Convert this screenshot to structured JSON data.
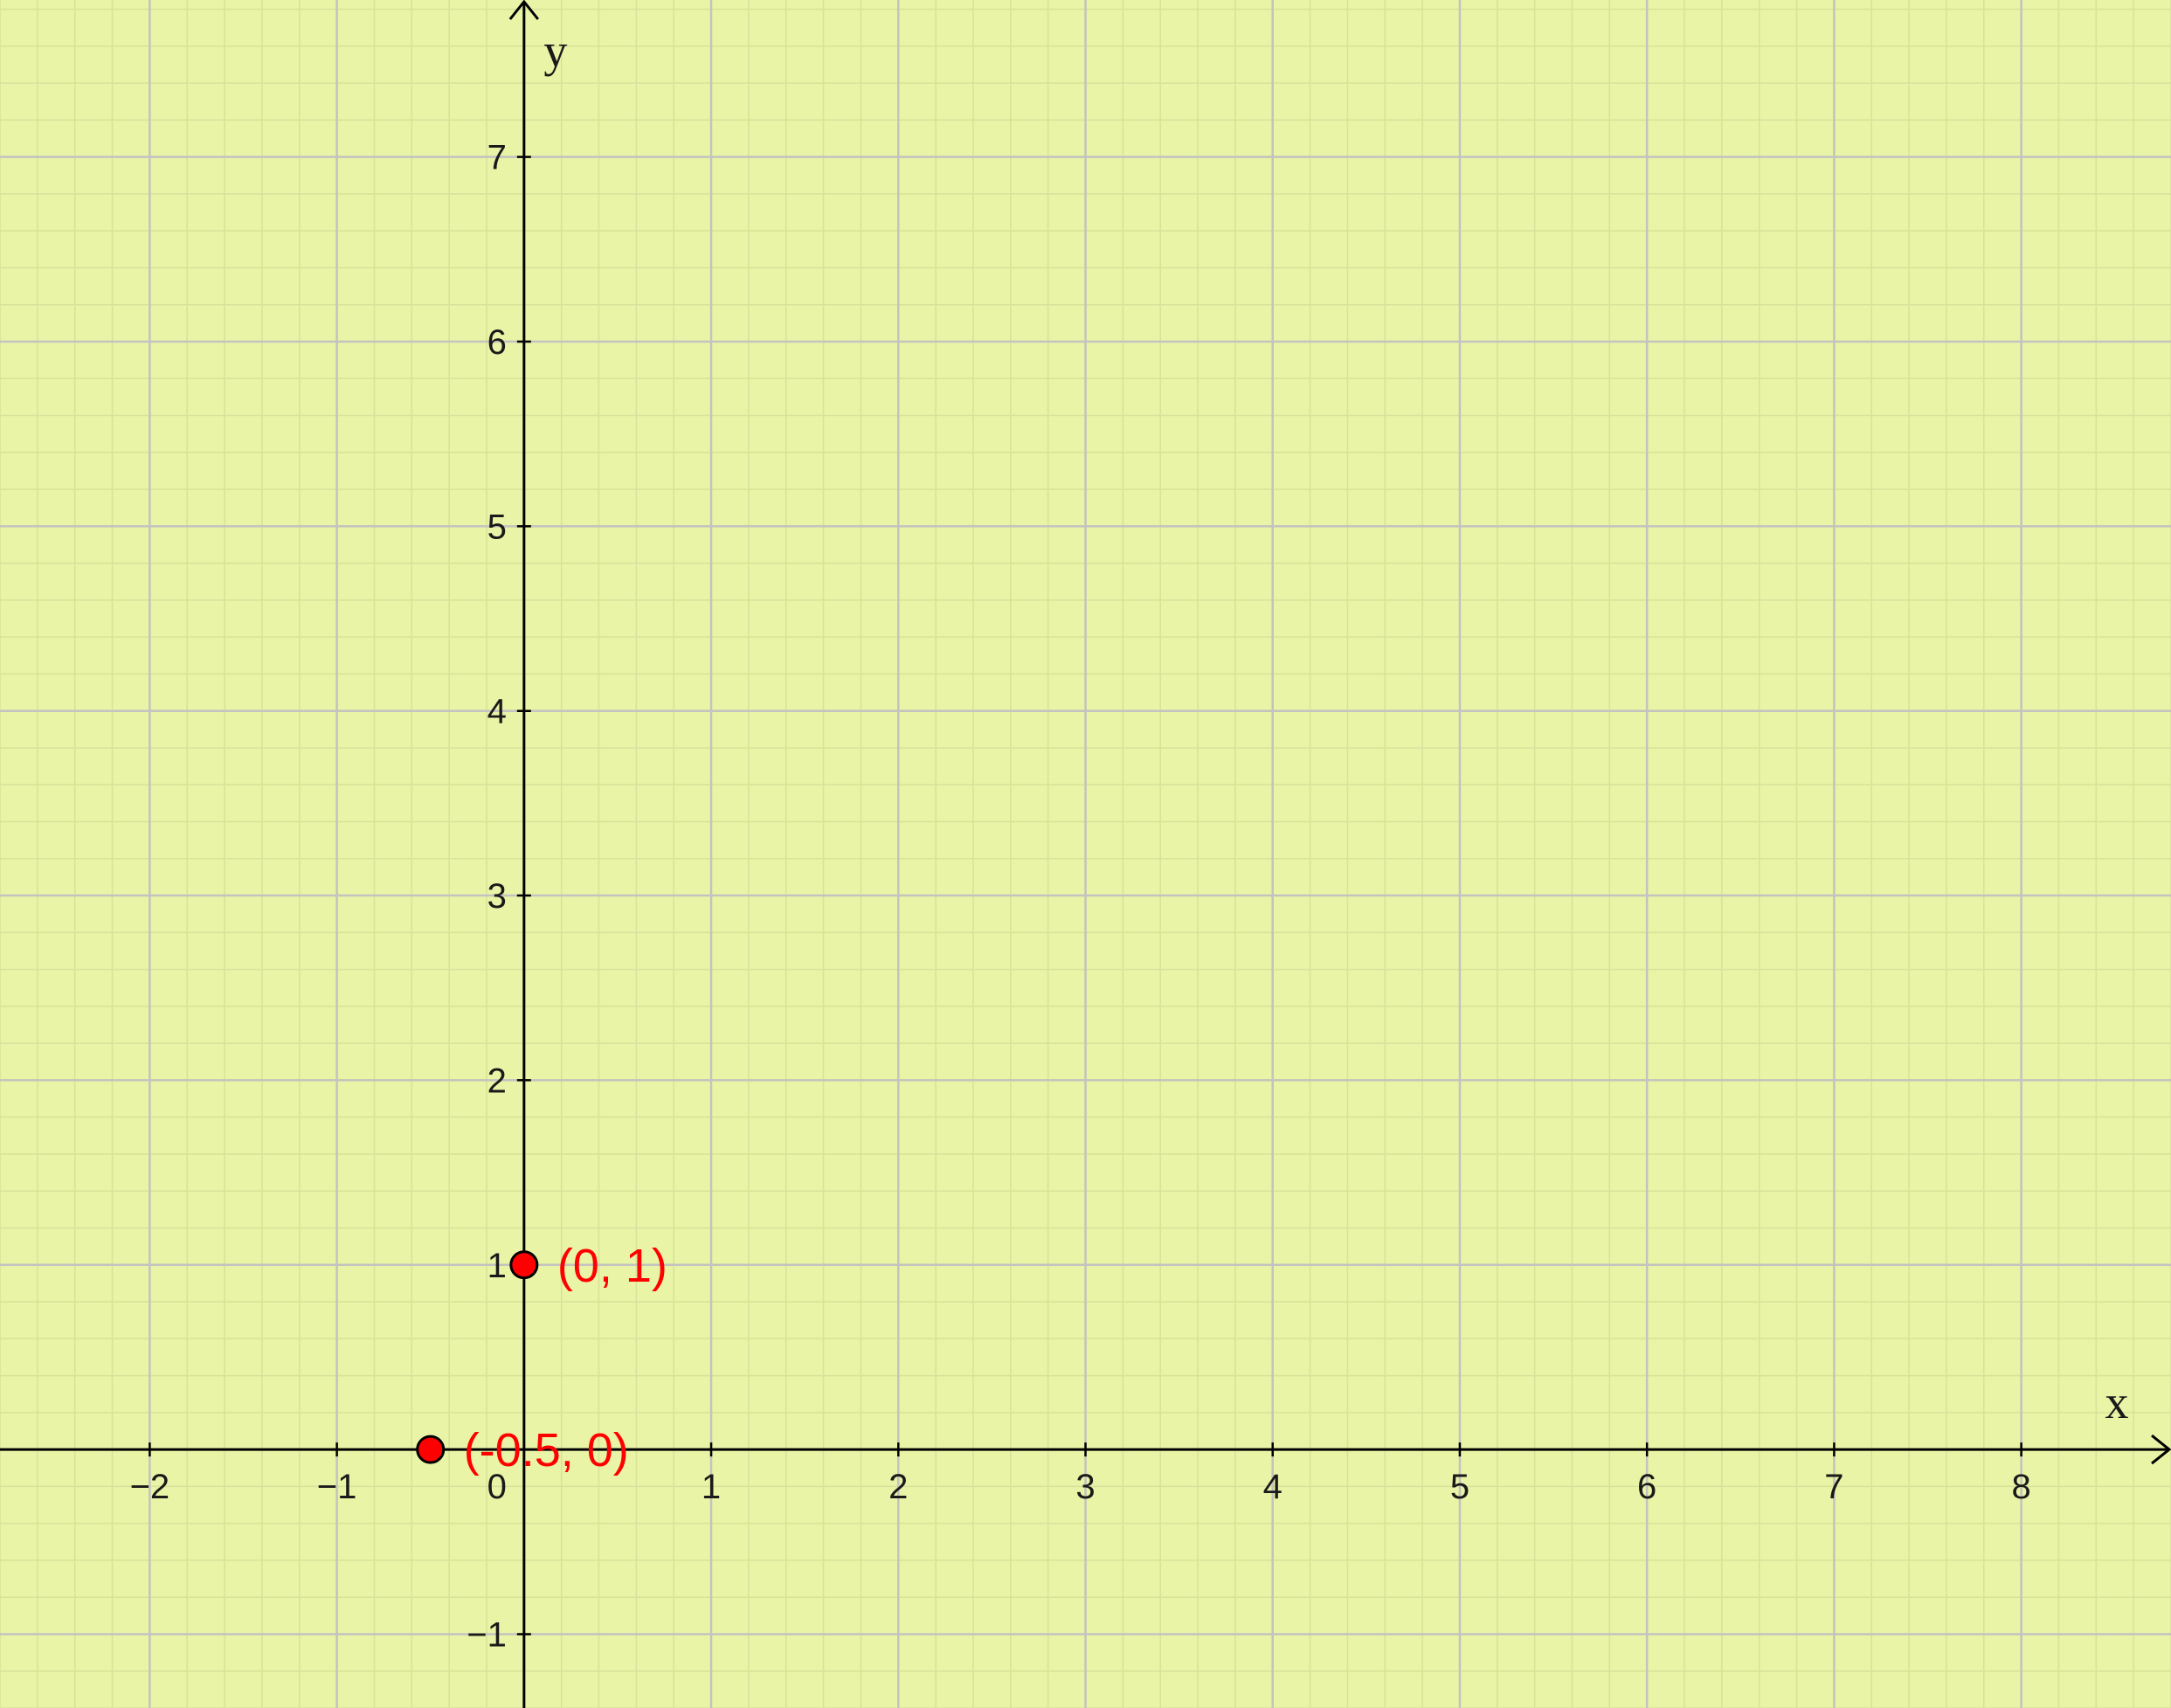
{
  "chart_data": {
    "type": "scatter",
    "title": "",
    "xlabel": "x",
    "ylabel": "y",
    "xlim": [
      -2.8,
      8.8
    ],
    "ylim": [
      -1.4,
      7.85
    ],
    "grid": true,
    "minor_grid": true,
    "background_color": "#e9f4a6",
    "grid_color": "#c3c3bf",
    "minor_grid_color": "#d7e29a",
    "axis_color": "#000000",
    "x_ticks": [
      {
        "value": -2,
        "label": "−2"
      },
      {
        "value": -1,
        "label": "−1"
      },
      {
        "value": 1,
        "label": "1"
      },
      {
        "value": 2,
        "label": "2"
      },
      {
        "value": 3,
        "label": "3"
      },
      {
        "value": 4,
        "label": "4"
      },
      {
        "value": 5,
        "label": "5"
      },
      {
        "value": 6,
        "label": "6"
      },
      {
        "value": 7,
        "label": "7"
      },
      {
        "value": 8,
        "label": "8"
      }
    ],
    "y_ticks": [
      {
        "value": -1,
        "label": "−1"
      },
      {
        "value": 1,
        "label": "1"
      },
      {
        "value": 2,
        "label": "2"
      },
      {
        "value": 3,
        "label": "3"
      },
      {
        "value": 4,
        "label": "4"
      },
      {
        "value": 5,
        "label": "5"
      },
      {
        "value": 6,
        "label": "6"
      },
      {
        "value": 7,
        "label": "7"
      }
    ],
    "origin_label": "0",
    "points": [
      {
        "x": 0,
        "y": 1,
        "label": "(0, 1)",
        "color": "#ff0000"
      },
      {
        "x": -0.5,
        "y": 0,
        "label": "(-0.5, 0)",
        "color": "#ff0000"
      }
    ]
  }
}
